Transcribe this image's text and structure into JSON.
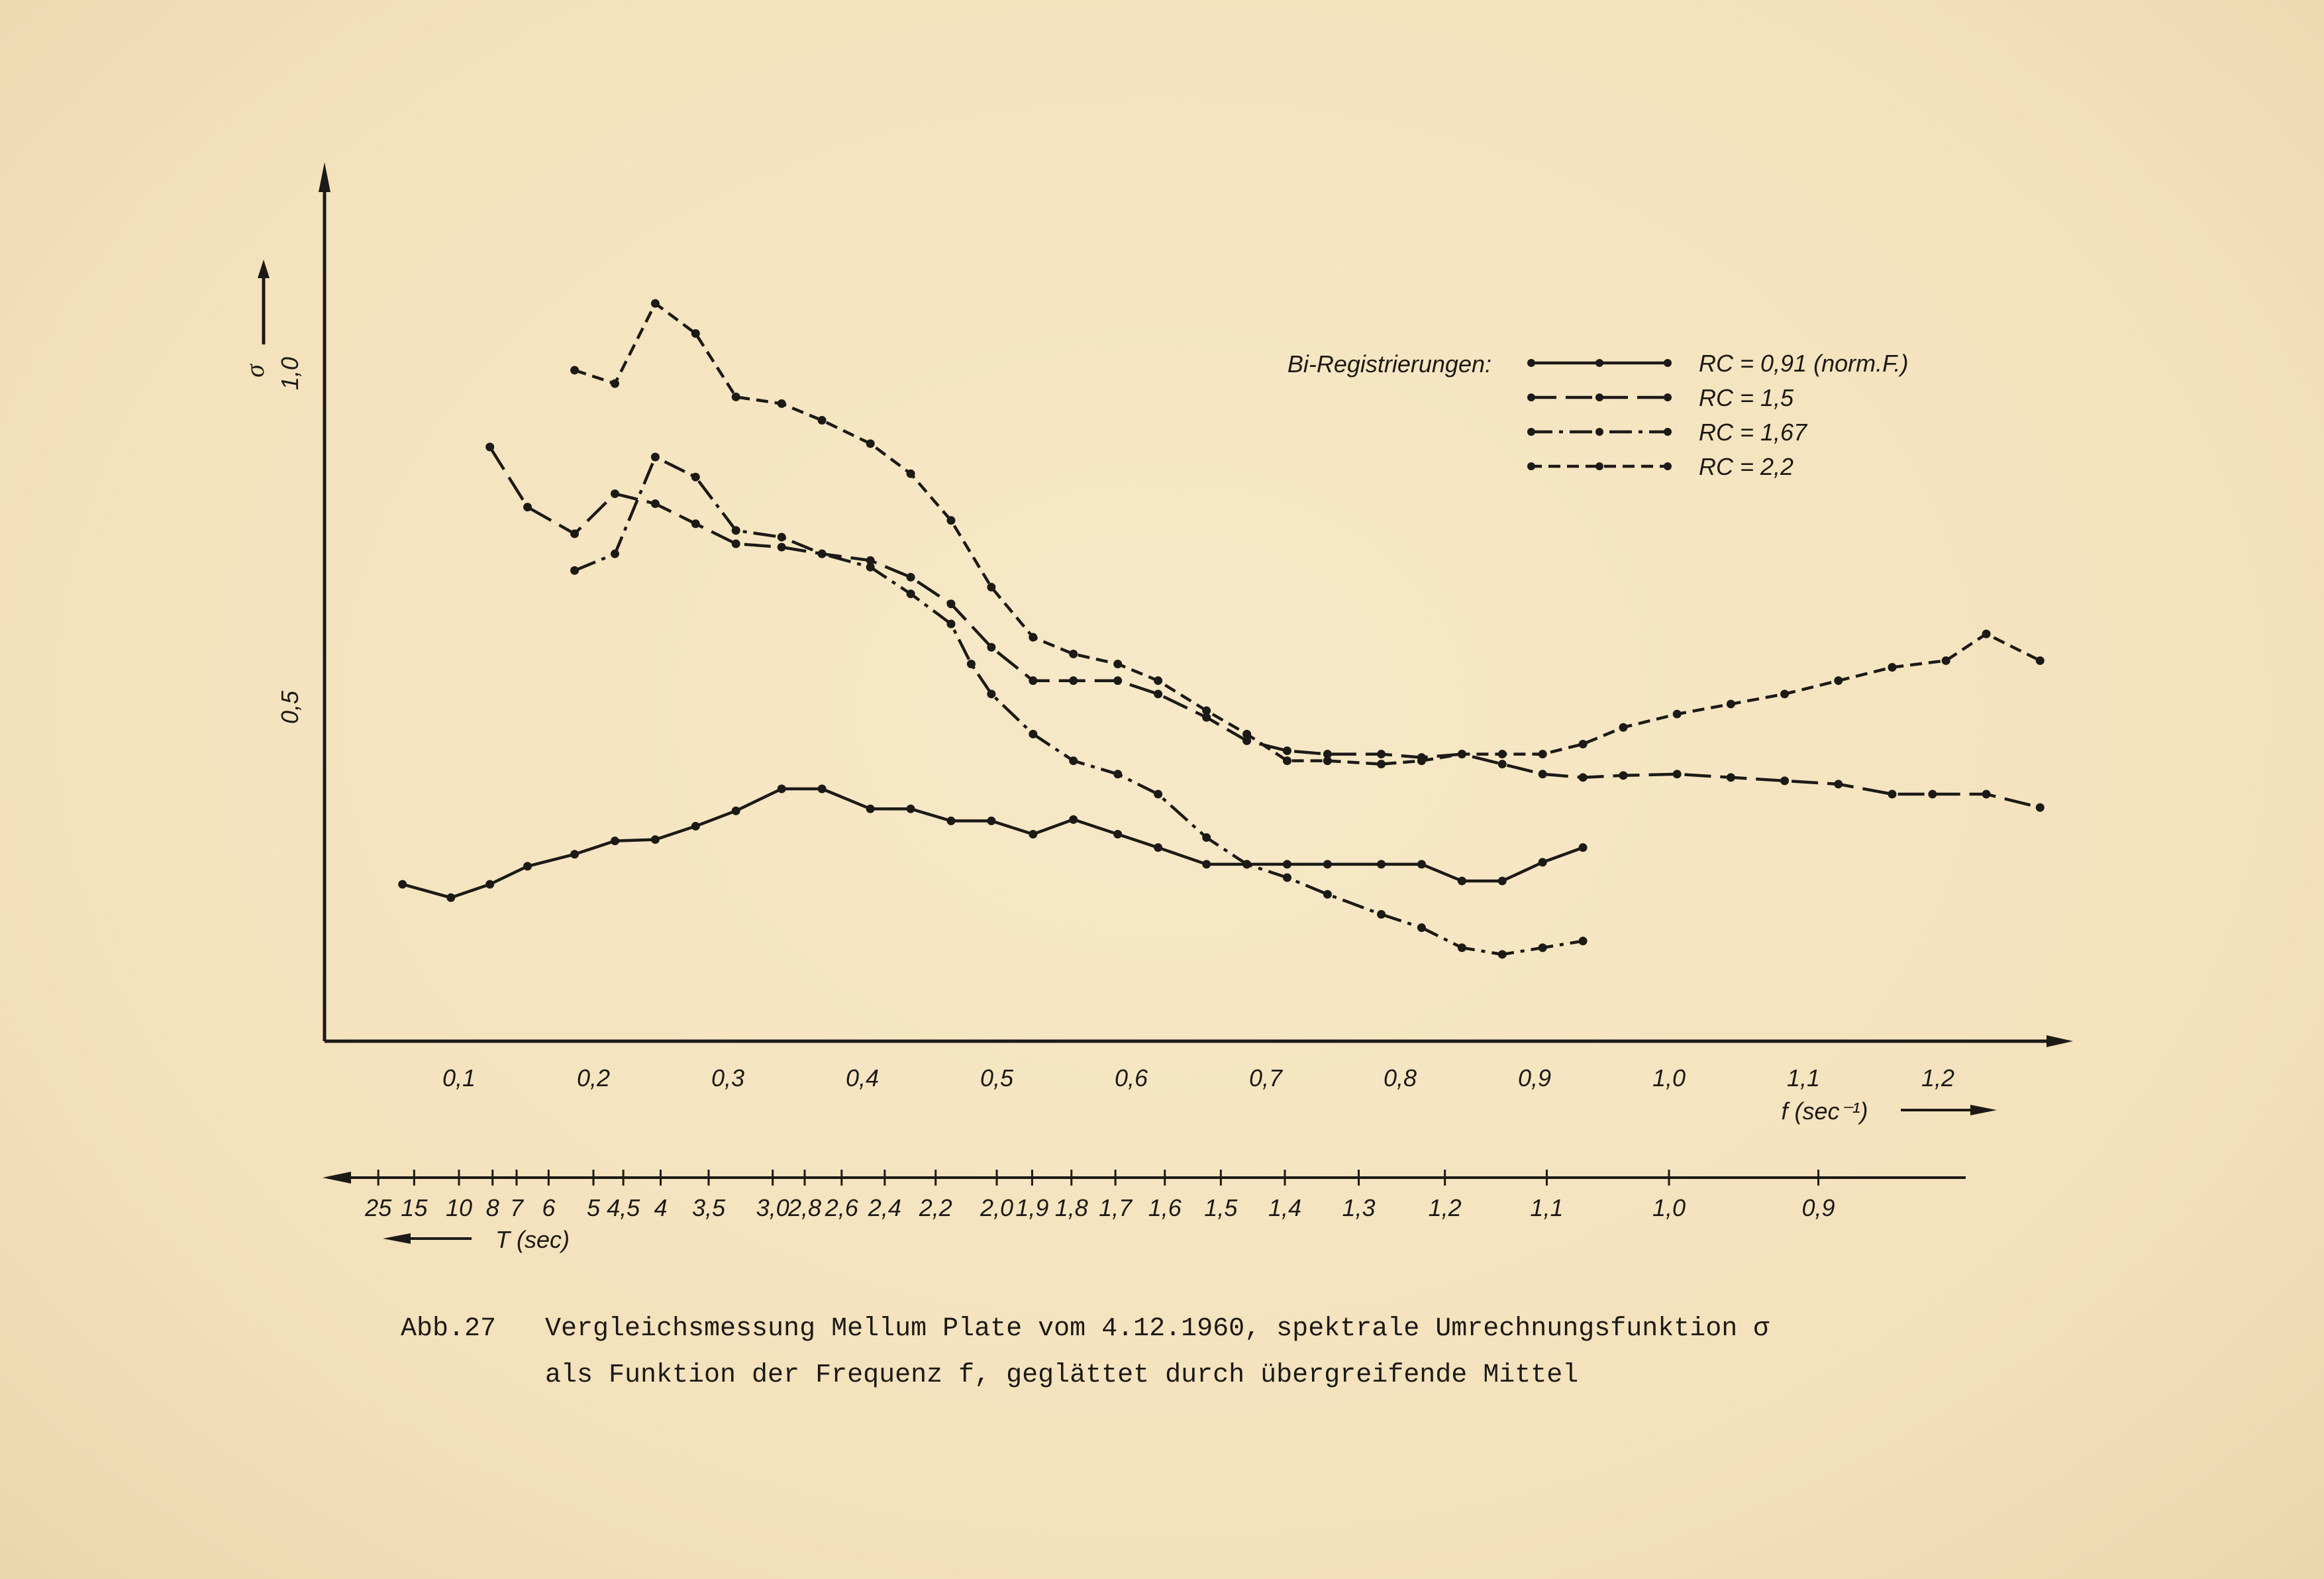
{
  "chart_data": {
    "type": "line",
    "y_symbol": "σ",
    "y_ticks": [
      {
        "label": "0,5",
        "value": 0.5
      },
      {
        "label": "1,0",
        "value": 1.0
      }
    ],
    "ylim": [
      0,
      1.0
    ],
    "xlim": [
      0,
      1.28
    ],
    "x_ticks": [
      {
        "label": "0,1",
        "value": 0.1
      },
      {
        "label": "0,2",
        "value": 0.2
      },
      {
        "label": "0,3",
        "value": 0.3
      },
      {
        "label": "0,4",
        "value": 0.4
      },
      {
        "label": "0,5",
        "value": 0.5
      },
      {
        "label": "0,6",
        "value": 0.6
      },
      {
        "label": "0,7",
        "value": 0.7
      },
      {
        "label": "0,8",
        "value": 0.8
      },
      {
        "label": "0,9",
        "value": 0.9
      },
      {
        "label": "1,0",
        "value": 1.0
      },
      {
        "label": "1,1",
        "value": 1.1
      },
      {
        "label": "1,2",
        "value": 1.2
      }
    ],
    "xlabel": "f (sec⁻¹)",
    "period_axis_label": "T (sec)",
    "period_ticks": [
      {
        "label": "25",
        "period": 25
      },
      {
        "label": "15",
        "period": 15
      },
      {
        "label": "10",
        "period": 10
      },
      {
        "label": "8",
        "period": 8
      },
      {
        "label": "7",
        "period": 7
      },
      {
        "label": "6",
        "period": 6
      },
      {
        "label": "5",
        "period": 5
      },
      {
        "label": "4,5",
        "period": 4.5
      },
      {
        "label": "4",
        "period": 4
      },
      {
        "label": "3,5",
        "period": 3.5
      },
      {
        "label": "3,0",
        "period": 3.0
      },
      {
        "label": "2,8",
        "period": 2.8
      },
      {
        "label": "2,6",
        "period": 2.6
      },
      {
        "label": "2,4",
        "period": 2.4
      },
      {
        "label": "2,2",
        "period": 2.2
      },
      {
        "label": "2,0",
        "period": 2.0
      },
      {
        "label": "1,9",
        "period": 1.9
      },
      {
        "label": "1,8",
        "period": 1.8
      },
      {
        "label": "1,7",
        "period": 1.7
      },
      {
        "label": "1,6",
        "period": 1.6
      },
      {
        "label": "1,5",
        "period": 1.5
      },
      {
        "label": "1,4",
        "period": 1.4
      },
      {
        "label": "1,3",
        "period": 1.3
      },
      {
        "label": "1,2",
        "period": 1.2
      },
      {
        "label": "1,1",
        "period": 1.1
      },
      {
        "label": "1,0",
        "period": 1.0
      },
      {
        "label": "0,9",
        "period": 0.9
      }
    ],
    "legend_title": "Bi-Registrierungen:",
    "legend_placement": "top-right",
    "grid": false,
    "series": [
      {
        "name": "RC = 0,91 (norm.F.)",
        "line_style": "solid",
        "x": [
          0.058,
          0.094,
          0.123,
          0.151,
          0.186,
          0.216,
          0.246,
          0.276,
          0.306,
          0.34,
          0.37,
          0.406,
          0.436,
          0.466,
          0.496,
          0.527,
          0.557,
          0.59,
          0.62,
          0.656,
          0.686,
          0.716,
          0.746,
          0.786,
          0.816,
          0.846,
          0.876,
          0.906,
          0.936
        ],
        "y": [
          0.235,
          0.215,
          0.235,
          0.262,
          0.28,
          0.3,
          0.302,
          0.322,
          0.345,
          0.378,
          0.378,
          0.348,
          0.348,
          0.33,
          0.33,
          0.31,
          0.332,
          0.31,
          0.29,
          0.265,
          0.265,
          0.265,
          0.265,
          0.265,
          0.265,
          0.24,
          0.24,
          0.268,
          0.29
        ]
      },
      {
        "name": "RC = 1,5",
        "line_style": "long-dash",
        "x": [
          0.123,
          0.151,
          0.186,
          0.216,
          0.246,
          0.276,
          0.306,
          0.34,
          0.37,
          0.406,
          0.436,
          0.466,
          0.496,
          0.527,
          0.557,
          0.59,
          0.62,
          0.656,
          0.686,
          0.716,
          0.746,
          0.786,
          0.816,
          0.846,
          0.876,
          0.906,
          0.936,
          0.966,
          1.006,
          1.046,
          1.086,
          1.126,
          1.166,
          1.196,
          1.236,
          1.276
        ],
        "y": [
          0.89,
          0.8,
          0.76,
          0.82,
          0.805,
          0.775,
          0.745,
          0.74,
          0.73,
          0.72,
          0.695,
          0.655,
          0.59,
          0.54,
          0.54,
          0.54,
          0.52,
          0.485,
          0.45,
          0.435,
          0.43,
          0.43,
          0.425,
          0.43,
          0.415,
          0.4,
          0.395,
          0.398,
          0.4,
          0.395,
          0.39,
          0.385,
          0.37,
          0.37,
          0.37,
          0.35
        ]
      },
      {
        "name": "RC = 1,67",
        "line_style": "dash-dot",
        "x": [
          0.186,
          0.216,
          0.246,
          0.276,
          0.306,
          0.34,
          0.37,
          0.406,
          0.436,
          0.466,
          0.481,
          0.496,
          0.527,
          0.557,
          0.59,
          0.62,
          0.656,
          0.686,
          0.716,
          0.746,
          0.786,
          0.816,
          0.846,
          0.876,
          0.906,
          0.936
        ],
        "y": [
          0.705,
          0.73,
          0.875,
          0.845,
          0.765,
          0.755,
          0.73,
          0.71,
          0.67,
          0.625,
          0.565,
          0.52,
          0.46,
          0.42,
          0.4,
          0.37,
          0.305,
          0.265,
          0.245,
          0.22,
          0.19,
          0.17,
          0.14,
          0.13,
          0.14,
          0.15
        ]
      },
      {
        "name": "RC = 2,2",
        "line_style": "short-dash",
        "x": [
          0.186,
          0.216,
          0.246,
          0.276,
          0.306,
          0.34,
          0.37,
          0.406,
          0.436,
          0.466,
          0.496,
          0.527,
          0.557,
          0.59,
          0.62,
          0.656,
          0.686,
          0.716,
          0.746,
          0.786,
          0.816,
          0.846,
          0.876,
          0.906,
          0.936,
          0.966,
          1.006,
          1.046,
          1.086,
          1.126,
          1.166,
          1.206,
          1.236,
          1.276
        ],
        "y": [
          1.005,
          0.985,
          1.105,
          1.06,
          0.965,
          0.955,
          0.93,
          0.895,
          0.85,
          0.78,
          0.68,
          0.605,
          0.58,
          0.565,
          0.54,
          0.495,
          0.46,
          0.42,
          0.42,
          0.415,
          0.42,
          0.43,
          0.43,
          0.43,
          0.445,
          0.47,
          0.49,
          0.505,
          0.52,
          0.54,
          0.56,
          0.57,
          0.61,
          0.57
        ]
      }
    ]
  },
  "caption": {
    "number": "Abb.27",
    "line1": "Vergleichsmessung Mellum Plate vom 4.12.1960, spektrale Umrechnungsfunktion σ",
    "line2": "als Funktion der Frequenz f, geglättet durch übergreifende Mittel"
  },
  "colors": {
    "ink": "#1c1a17",
    "paper": "#f6e6c4"
  }
}
